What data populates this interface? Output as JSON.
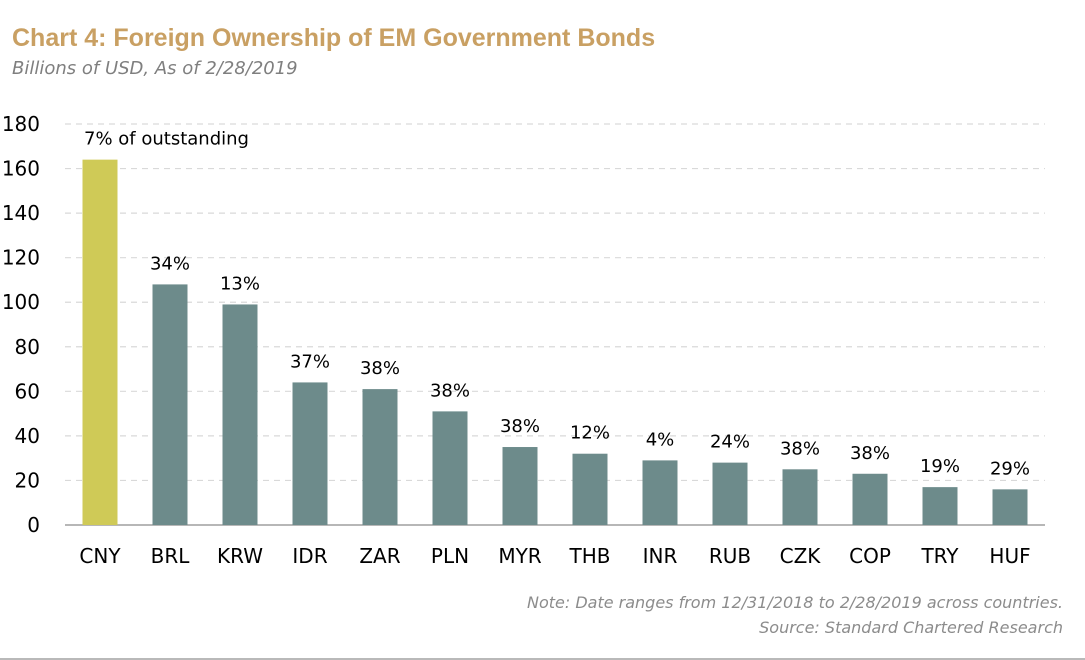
{
  "header": {
    "title": "Chart 4: Foreign Ownership of EM Government Bonds",
    "subtitle": "Billions of USD, As of 2/28/2019"
  },
  "footer": {
    "note": "Note: Date ranges from 12/31/2018 to 2/28/2019 across countries.",
    "source": "Source: Standard Chartered Research"
  },
  "colors": {
    "highlight_bar": "#cfca57",
    "bar": "#6d8b8b",
    "title": "#c9a063",
    "gridline": "#d9d9d9"
  },
  "chart_data": {
    "type": "bar",
    "title": "Chart 4: Foreign Ownership of EM Government Bonds",
    "subtitle": "Billions of USD, As of 2/28/2019",
    "categories": [
      "CNY",
      "BRL",
      "KRW",
      "IDR",
      "ZAR",
      "PLN",
      "MYR",
      "THB",
      "INR",
      "RUB",
      "CZK",
      "COP",
      "TRY",
      "HUF"
    ],
    "values": [
      164,
      108,
      99,
      64,
      61,
      51,
      35,
      32,
      29,
      28,
      25,
      23,
      17,
      16
    ],
    "data_labels": [
      "7% of outstanding",
      "34%",
      "13%",
      "37%",
      "38%",
      "38%",
      "38%",
      "12%",
      "4%",
      "24%",
      "38%",
      "38%",
      "19%",
      "29%"
    ],
    "highlight_index": 0,
    "ylim": [
      0,
      180
    ],
    "yticks": [
      0,
      20,
      40,
      60,
      80,
      100,
      120,
      140,
      160,
      180
    ],
    "grid": true,
    "legend": "none"
  }
}
